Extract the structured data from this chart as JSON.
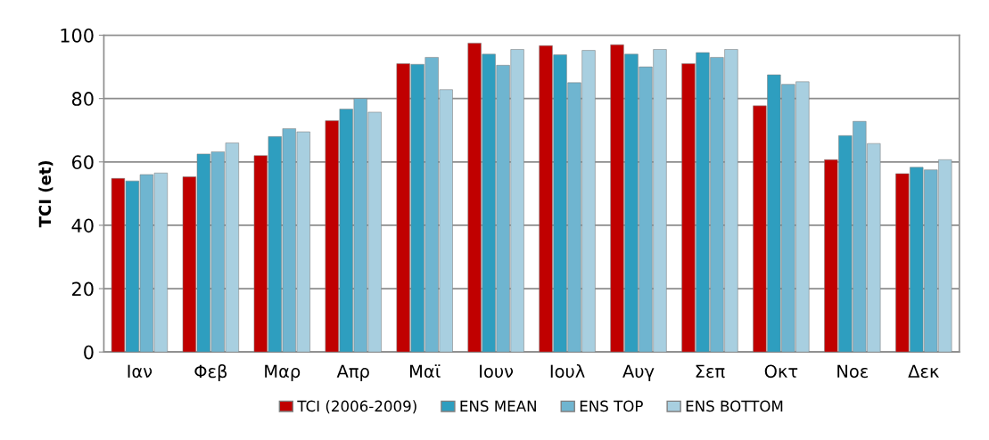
{
  "chart_data": {
    "type": "bar",
    "ylabel": "TCI (et)",
    "categories": [
      "Ιαν",
      "Φεβ",
      "Μαρ",
      "Απρ",
      "Μαϊ",
      "Ιουν",
      "Ιουλ",
      "Αυγ",
      "Σεπ",
      "Οκτ",
      "Νοε",
      "Δεκ"
    ],
    "series": [
      {
        "name": "TCI (2006-2009)",
        "color": "#c00000",
        "values": [
          54.8,
          55.3,
          62,
          73,
          91,
          97.5,
          96.7,
          97,
          91,
          77.7,
          60.7,
          56.3
        ]
      },
      {
        "name": "ENS MEAN",
        "color": "#2e9ebf",
        "values": [
          54,
          62.5,
          68,
          76.7,
          90.8,
          94,
          93.8,
          94,
          94.5,
          87.5,
          68.3,
          58.3
        ]
      },
      {
        "name": "ENS TOP",
        "color": "#6fb5d0",
        "values": [
          56,
          63.2,
          70.5,
          80,
          93,
          90.5,
          85,
          90,
          93,
          84.5,
          72.8,
          57.5
        ]
      },
      {
        "name": "ENS BOTTOM",
        "color": "#a8cfe0",
        "values": [
          56.5,
          66,
          69.5,
          75.7,
          82.8,
          95.5,
          95.2,
          95.5,
          95.5,
          85.3,
          65.8,
          60.7
        ]
      }
    ],
    "ylim": [
      0,
      100
    ],
    "yticks": [
      0,
      20,
      40,
      60,
      80,
      100
    ],
    "grid": "y",
    "legend": "bottom"
  }
}
